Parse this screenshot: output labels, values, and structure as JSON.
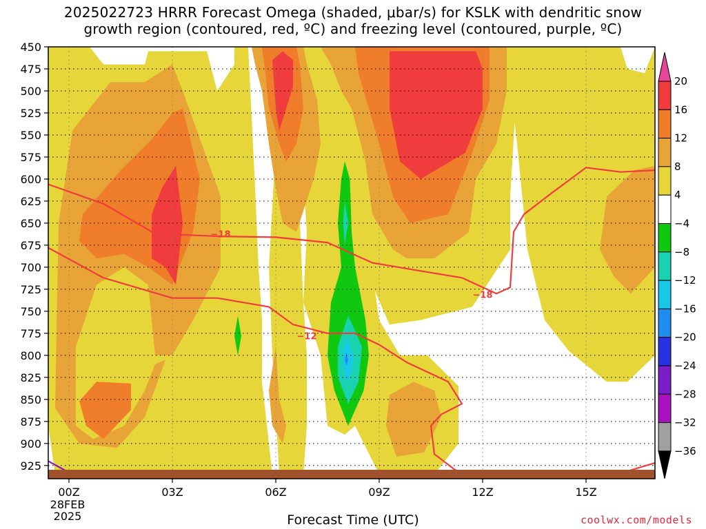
{
  "title": {
    "line1": "2025022723 HRRR Forecast Omega (shaded, μbar/s) for KSLK with dendritic snow",
    "line2": "growth region (contoured, red, ºC) and freezing level (contoured, purple, ºC)"
  },
  "xlabel": "Forecast Time (UTC)",
  "credit": "coolwx.com/models",
  "chart_data": {
    "type": "time-height cross section",
    "y_axis": {
      "unit": "mb",
      "levels": [
        450,
        475,
        500,
        525,
        550,
        575,
        600,
        625,
        650,
        675,
        700,
        725,
        750,
        775,
        800,
        825,
        850,
        875,
        900,
        925
      ],
      "range": [
        450,
        940
      ]
    },
    "x_axis": {
      "unit": "forecast hour",
      "range": [
        -0.6,
        17
      ],
      "ticks": [
        {
          "hour": 0,
          "label": "00Z",
          "sub1": "28FEB",
          "sub2": "2025"
        },
        {
          "hour": 3,
          "label": "03Z",
          "sub1": "",
          "sub2": ""
        },
        {
          "hour": 6,
          "label": "06Z",
          "sub1": "",
          "sub2": ""
        },
        {
          "hour": 9,
          "label": "09Z",
          "sub1": "",
          "sub2": ""
        },
        {
          "hour": 12,
          "label": "12Z",
          "sub1": "",
          "sub2": ""
        },
        {
          "hour": 15,
          "label": "15Z",
          "sub1": "",
          "sub2": ""
        }
      ]
    },
    "grid": true,
    "colorbar": {
      "labels": [
        "20",
        "16",
        "12",
        "8",
        "4",
        "−4",
        "−8",
        "−12",
        "−16",
        "−20",
        "−24",
        "−28",
        "−32",
        "−36"
      ],
      "colors": [
        "#e8449a",
        "#f03c3c",
        "#f07d2a",
        "#e8a436",
        "#e6d63a",
        "#ffffff",
        "#10c810",
        "#18d2b0",
        "#18c8e8",
        "#1e8cf0",
        "#2832e0",
        "#7a1ec8",
        "#a810c0",
        "#a0a0a0",
        "#000000"
      ]
    },
    "colors": {
      "c4_8": "#e6d63a",
      "c8_12": "#e8a436",
      "c12_16": "#f07d2a",
      "c16_20": "#f03c3c",
      "neg4_8": "#10c810",
      "neg8_12": "#18d2b0",
      "neg12_16": "#18c8e8",
      "neg16_20": "#1e8cf0",
      "dgz_line": "#f03c3c",
      "freezing_line": "#8a10c8",
      "terrain": "#a0522d"
    },
    "contour_labels": [
      {
        "text": "−18",
        "hour": 4.4,
        "p": 662
      },
      {
        "text": "−18",
        "hour": 12.0,
        "p": 731
      },
      {
        "text": "−12",
        "hour": 6.9,
        "p": 778
      }
    ],
    "dgz_minus18": [
      [
        -0.6,
        606
      ],
      [
        1,
        628
      ],
      [
        2.5,
        662
      ],
      [
        4.4,
        665
      ],
      [
        6,
        666
      ],
      [
        7.5,
        672
      ],
      [
        8.8,
        695
      ],
      [
        10,
        703
      ],
      [
        11.4,
        712
      ],
      [
        12.4,
        730
      ],
      [
        12.8,
        723
      ],
      [
        12.9,
        660
      ],
      [
        13.2,
        640
      ],
      [
        14,
        616
      ],
      [
        15,
        587
      ],
      [
        16,
        592
      ],
      [
        17,
        590
      ]
    ],
    "dgz_minus12": [
      [
        -0.6,
        678
      ],
      [
        1,
        712
      ],
      [
        3,
        735
      ],
      [
        4.3,
        735
      ],
      [
        5.8,
        745
      ],
      [
        6.5,
        765
      ],
      [
        7.5,
        775
      ],
      [
        8.3,
        775
      ],
      [
        9,
        788
      ],
      [
        9.8,
        808
      ],
      [
        11,
        830
      ],
      [
        11.4,
        855
      ],
      [
        10.8,
        867
      ],
      [
        10.5,
        880
      ],
      [
        10.6,
        912
      ],
      [
        11.2,
        930
      ],
      [
        11.6,
        935
      ]
    ],
    "freezing_level": [
      [
        -0.6,
        920
      ],
      [
        0,
        933
      ]
    ],
    "freezing_level_right": [
      [
        15.9,
        935
      ],
      [
        17,
        922
      ]
    ]
  }
}
